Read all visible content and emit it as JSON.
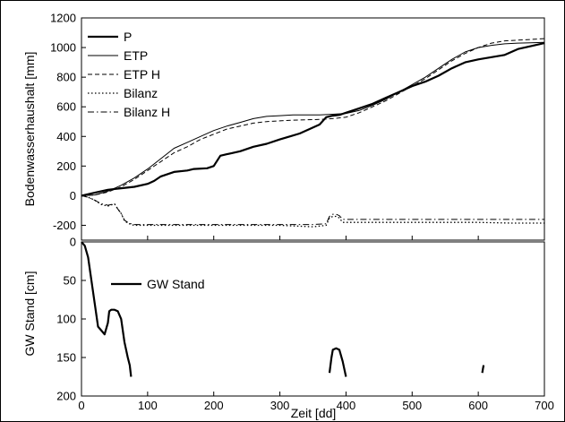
{
  "chart_data": [
    {
      "type": "line",
      "panel": "top",
      "ylabel": "Bodenwasserhaushalt [mm]",
      "xlim": [
        0,
        700
      ],
      "ylim": [
        -300,
        1200
      ],
      "yticks": [
        -200,
        0,
        200,
        400,
        600,
        800,
        1000,
        1200
      ],
      "xticks": [
        0,
        100,
        200,
        300,
        400,
        500,
        600,
        700
      ],
      "grid": false,
      "legend_position": "top-left",
      "series": [
        {
          "name": "P",
          "style": "solid-thick",
          "x": [
            0,
            20,
            40,
            60,
            80,
            100,
            110,
            120,
            140,
            160,
            170,
            190,
            200,
            210,
            220,
            225,
            240,
            260,
            280,
            300,
            315,
            330,
            345,
            360,
            370,
            380,
            390,
            400,
            420,
            440,
            460,
            480,
            500,
            520,
            540,
            560,
            580,
            600,
            620,
            640,
            660,
            680,
            700
          ],
          "y": [
            0,
            20,
            40,
            50,
            60,
            80,
            100,
            130,
            160,
            170,
            180,
            185,
            200,
            270,
            280,
            285,
            300,
            330,
            350,
            380,
            400,
            420,
            450,
            480,
            530,
            540,
            545,
            560,
            590,
            620,
            660,
            700,
            740,
            770,
            810,
            860,
            900,
            920,
            935,
            950,
            990,
            1010,
            1030
          ]
        },
        {
          "name": "ETP",
          "style": "solid-thin",
          "x": [
            0,
            20,
            40,
            60,
            80,
            100,
            120,
            140,
            160,
            180,
            200,
            220,
            240,
            260,
            280,
            300,
            320,
            340,
            360,
            380,
            400,
            420,
            440,
            460,
            480,
            500,
            520,
            540,
            560,
            580,
            600,
            620,
            640,
            660,
            680,
            700
          ],
          "y": [
            0,
            5,
            30,
            70,
            120,
            180,
            250,
            320,
            360,
            400,
            440,
            470,
            495,
            520,
            535,
            540,
            545,
            545,
            545,
            550,
            555,
            575,
            610,
            650,
            700,
            750,
            800,
            860,
            920,
            970,
            1000,
            1015,
            1025,
            1030,
            1032,
            1035
          ]
        },
        {
          "name": "ETP H",
          "style": "dashed",
          "x": [
            0,
            20,
            40,
            60,
            80,
            100,
            120,
            140,
            160,
            180,
            200,
            220,
            240,
            260,
            280,
            300,
            320,
            340,
            360,
            380,
            400,
            420,
            440,
            460,
            480,
            500,
            520,
            540,
            560,
            580,
            600,
            620,
            640,
            660,
            680,
            700
          ],
          "y": [
            0,
            5,
            25,
            60,
            110,
            170,
            230,
            290,
            330,
            380,
            415,
            450,
            470,
            490,
            500,
            505,
            510,
            512,
            515,
            520,
            530,
            560,
            600,
            640,
            690,
            740,
            790,
            850,
            910,
            960,
            1000,
            1030,
            1045,
            1050,
            1055,
            1060
          ]
        },
        {
          "name": "Bilanz",
          "style": "dotted",
          "x": [
            0,
            10,
            20,
            30,
            40,
            50,
            55,
            60,
            65,
            70,
            75,
            80,
            100,
            150,
            200,
            250,
            300,
            350,
            370,
            375,
            380,
            385,
            390,
            395,
            400,
            450,
            500,
            550,
            600,
            650,
            700
          ],
          "y": [
            0,
            -10,
            -30,
            -60,
            -70,
            -55,
            -90,
            -120,
            -170,
            -185,
            -195,
            -200,
            -200,
            -200,
            -200,
            -200,
            -200,
            -210,
            -200,
            -150,
            -140,
            -140,
            -150,
            -180,
            -180,
            -180,
            -180,
            -180,
            -180,
            -185,
            -185
          ]
        },
        {
          "name": "Bilanz H",
          "style": "dashdot",
          "x": [
            0,
            10,
            20,
            30,
            40,
            50,
            55,
            60,
            65,
            70,
            75,
            80,
            100,
            150,
            200,
            250,
            300,
            350,
            370,
            375,
            380,
            385,
            390,
            395,
            400,
            450,
            500,
            550,
            600,
            650,
            700
          ],
          "y": [
            0,
            -10,
            -30,
            -55,
            -65,
            -55,
            -90,
            -120,
            -165,
            -180,
            -190,
            -195,
            -195,
            -195,
            -195,
            -195,
            -195,
            -195,
            -190,
            -140,
            -125,
            -125,
            -135,
            -160,
            -160,
            -160,
            -160,
            -160,
            -160,
            -160,
            -160
          ]
        }
      ]
    },
    {
      "type": "line",
      "panel": "bottom",
      "xlabel": "Zeit [dd]",
      "ylabel": "GW Stand [cm]",
      "xlim": [
        0,
        700
      ],
      "ylim": [
        0,
        200
      ],
      "y_inverted": true,
      "yticks": [
        0,
        50,
        100,
        150,
        200
      ],
      "xticks": [
        0,
        100,
        200,
        300,
        400,
        500,
        600,
        700
      ],
      "grid": false,
      "legend_position": "top-left",
      "series": [
        {
          "name": "GW Stand",
          "style": "solid-thick",
          "segments": [
            {
              "x": [
                0,
                5,
                10,
                15,
                20,
                25,
                30,
                35,
                40,
                42,
                45,
                50,
                55,
                60,
                65,
                70,
                73,
                75
              ],
              "y": [
                0,
                5,
                20,
                50,
                80,
                110,
                115,
                120,
                105,
                90,
                88,
                88,
                90,
                100,
                130,
                150,
                160,
                175
              ]
            },
            {
              "x": [
                375,
                378,
                380,
                385,
                390,
                395,
                400
              ],
              "y": [
                170,
                150,
                140,
                138,
                140,
                155,
                175
              ]
            },
            {
              "x": [
                606,
                607,
                608
              ],
              "y": [
                170,
                165,
                160
              ]
            }
          ]
        }
      ]
    }
  ]
}
